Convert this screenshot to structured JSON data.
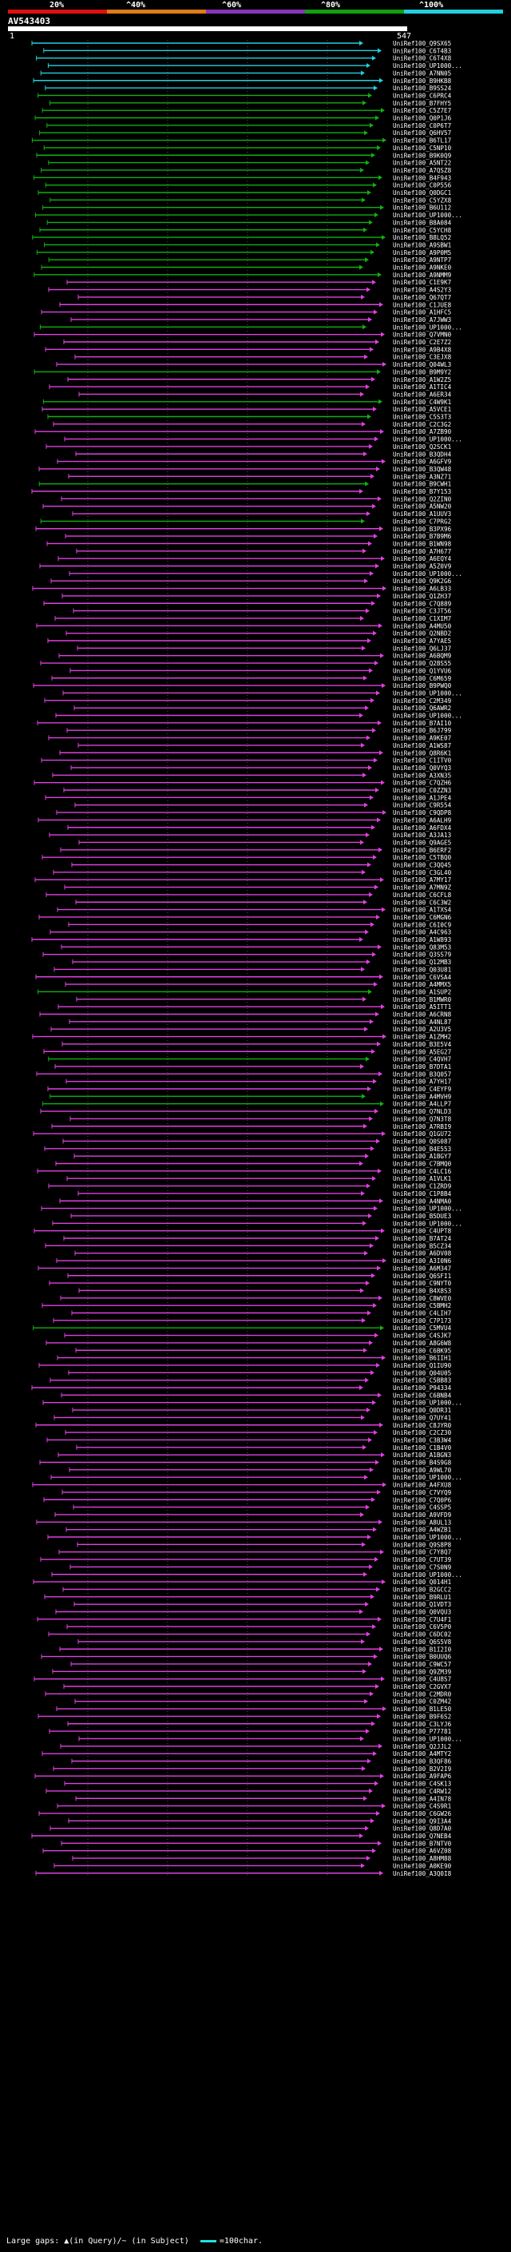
{
  "legend": {
    "labels": [
      "20%",
      "^40%",
      "^60%",
      "^80%",
      "^100%"
    ],
    "colors": [
      "#e01010",
      "#e07a1a",
      "#8a34b8",
      "#10a010",
      "#22d0e0"
    ]
  },
  "query": {
    "id": "AV543403",
    "start": "1",
    "end": "547"
  },
  "footer": {
    "large_gaps": "Large gaps: ▲(in Query)/~ (in Subject)",
    "scale": "=100char."
  },
  "hits": [
    {
      "label": "UniRef100_Q9SX65",
      "color": "cyan"
    },
    {
      "label": "UniRef100_C6T4B3",
      "color": "cyan"
    },
    {
      "label": "UniRef100_C6T4X8",
      "color": "cyan"
    },
    {
      "label": "UniRef100_UP1000...",
      "color": "cyan"
    },
    {
      "label": "UniRef100_A7NN05",
      "color": "cyan"
    },
    {
      "label": "UniRef100_B9HKB8",
      "color": "cyan"
    },
    {
      "label": "UniRef100_B9SS24",
      "color": "cyan"
    },
    {
      "label": "UniRef100_C6PRC4",
      "color": "green"
    },
    {
      "label": "UniRef100_B7FHY5",
      "color": "green"
    },
    {
      "label": "UniRef100_C5Z7E7",
      "color": "green"
    },
    {
      "label": "UniRef100_Q0P1J6",
      "color": "green"
    },
    {
      "label": "UniRef100_C0P6T7",
      "color": "green"
    },
    {
      "label": "UniRef100_Q6HV57",
      "color": "green"
    },
    {
      "label": "UniRef100_B6TL17",
      "color": "green"
    },
    {
      "label": "UniRef100_C5NP10",
      "color": "green"
    },
    {
      "label": "UniRef100_B9K0Q9",
      "color": "green"
    },
    {
      "label": "UniRef100_A5NT22",
      "color": "green"
    },
    {
      "label": "UniRef100_A7QSZ8",
      "color": "green"
    },
    {
      "label": "UniRef100_B4F943",
      "color": "green"
    },
    {
      "label": "UniRef100_C0P556",
      "color": "green"
    },
    {
      "label": "UniRef100_Q0DGC1",
      "color": "green"
    },
    {
      "label": "UniRef100_C5YZX8",
      "color": "green"
    },
    {
      "label": "UniRef100_B6U112",
      "color": "green"
    },
    {
      "label": "UniRef100_UP1000...",
      "color": "green"
    },
    {
      "label": "UniRef100_B8A084",
      "color": "green"
    },
    {
      "label": "UniRef100_C5YCH8",
      "color": "green"
    },
    {
      "label": "UniRef100_B8LQ52",
      "color": "green"
    },
    {
      "label": "UniRef100_A9SBW1",
      "color": "green"
    },
    {
      "label": "UniRef100_A9P0M5",
      "color": "green"
    },
    {
      "label": "UniRef100_A9NTP7",
      "color": "green"
    },
    {
      "label": "UniRef100_A9NKE0",
      "color": "green"
    },
    {
      "label": "UniRef100_A9NMM9",
      "color": "green"
    },
    {
      "label": "UniRef100_C1E9K7",
      "color": "magenta"
    },
    {
      "label": "UniRef100_A4S2Y3",
      "color": "magenta"
    },
    {
      "label": "UniRef100_Q67QT7",
      "color": "magenta"
    },
    {
      "label": "UniRef100_C1JUE8",
      "color": "magenta"
    },
    {
      "label": "UniRef100_A1HFC5",
      "color": "magenta"
    },
    {
      "label": "UniRef100_A7JWW3",
      "color": "magenta"
    },
    {
      "label": "UniRef100_UP1000...",
      "color": "green"
    },
    {
      "label": "UniRef100_Q7VMN0",
      "color": "magenta"
    },
    {
      "label": "UniRef100_C2E7Z2",
      "color": "magenta"
    },
    {
      "label": "UniRef100_A9B4X8",
      "color": "magenta"
    },
    {
      "label": "UniRef100_C3EJX8",
      "color": "magenta"
    },
    {
      "label": "UniRef100_Q04WL3",
      "color": "magenta"
    },
    {
      "label": "UniRef100_B9M9Y2",
      "color": "green"
    },
    {
      "label": "UniRef100_A1W2Z5",
      "color": "magenta"
    },
    {
      "label": "UniRef100_A1TIC4",
      "color": "magenta"
    },
    {
      "label": "UniRef100_A6ER34",
      "color": "magenta"
    },
    {
      "label": "UniRef100_C4W9K1",
      "color": "green"
    },
    {
      "label": "UniRef100_A5VCE1",
      "color": "magenta"
    },
    {
      "label": "UniRef100_C5S3T3",
      "color": "green"
    },
    {
      "label": "UniRef100_C2C3G2",
      "color": "magenta"
    },
    {
      "label": "UniRef100_A7ZB90",
      "color": "magenta"
    },
    {
      "label": "UniRef100_UP1000...",
      "color": "magenta"
    },
    {
      "label": "UniRef100_Q2SCK1",
      "color": "magenta"
    },
    {
      "label": "UniRef100_B3QDH4",
      "color": "magenta"
    },
    {
      "label": "UniRef100_A6GFV9",
      "color": "magenta"
    },
    {
      "label": "UniRef100_B3QW48",
      "color": "magenta"
    },
    {
      "label": "UniRef100_A3NZ71",
      "color": "magenta"
    },
    {
      "label": "UniRef100_B9CWH1",
      "color": "green"
    },
    {
      "label": "UniRef100_B7Y153",
      "color": "magenta"
    },
    {
      "label": "UniRef100_Q2ZIN0",
      "color": "magenta"
    },
    {
      "label": "UniRef100_A5NW20",
      "color": "magenta"
    },
    {
      "label": "UniRef100_A1UUV3",
      "color": "magenta"
    },
    {
      "label": "UniRef100_C7PRG2",
      "color": "green"
    },
    {
      "label": "UniRef100_B3PX96",
      "color": "magenta"
    },
    {
      "label": "UniRef100_B7B9M6",
      "color": "magenta"
    },
    {
      "label": "UniRef100_B1WN98",
      "color": "magenta"
    },
    {
      "label": "UniRef100_A7H677",
      "color": "magenta"
    },
    {
      "label": "UniRef100_A6EQY4",
      "color": "magenta"
    },
    {
      "label": "UniRef100_A5Z0V9",
      "color": "magenta"
    },
    {
      "label": "UniRef100_UP1000...",
      "color": "magenta"
    },
    {
      "label": "UniRef100_Q9K2G6",
      "color": "magenta"
    },
    {
      "label": "UniRef100_A6LB33",
      "color": "magenta"
    },
    {
      "label": "UniRef100_Q1ZH37",
      "color": "magenta"
    },
    {
      "label": "UniRef100_C7Q889",
      "color": "magenta"
    },
    {
      "label": "UniRef100_C3JT56",
      "color": "magenta"
    },
    {
      "label": "UniRef100_C1XIM7",
      "color": "magenta"
    },
    {
      "label": "UniRef100_A4MU50",
      "color": "magenta"
    },
    {
      "label": "UniRef100_Q2NBD2",
      "color": "magenta"
    },
    {
      "label": "UniRef100_A7YAE5",
      "color": "magenta"
    },
    {
      "label": "UniRef100_Q6LJ37",
      "color": "magenta"
    },
    {
      "label": "UniRef100_A6BQM9",
      "color": "magenta"
    },
    {
      "label": "UniRef100_Q2BS55",
      "color": "magenta"
    },
    {
      "label": "UniRef100_Q1YVU6",
      "color": "magenta"
    },
    {
      "label": "UniRef100_C6M659",
      "color": "magenta"
    },
    {
      "label": "UniRef100_B9PWQ0",
      "color": "magenta"
    },
    {
      "label": "UniRef100_UP1000...",
      "color": "magenta"
    },
    {
      "label": "UniRef100_C2M349",
      "color": "magenta"
    },
    {
      "label": "UniRef100_Q6AWR2",
      "color": "magenta"
    },
    {
      "label": "UniRef100_UP1000...",
      "color": "magenta"
    },
    {
      "label": "UniRef100_B7AI10",
      "color": "magenta"
    },
    {
      "label": "UniRef100_B6J799",
      "color": "magenta"
    },
    {
      "label": "UniRef100_A9KE07",
      "color": "magenta"
    },
    {
      "label": "UniRef100_A1WS87",
      "color": "magenta"
    },
    {
      "label": "UniRef100_Q8R6K1",
      "color": "magenta"
    },
    {
      "label": "UniRef100_C1ITV0",
      "color": "magenta"
    },
    {
      "label": "UniRef100_Q0VYQ3",
      "color": "magenta"
    },
    {
      "label": "UniRef100_A3XN35",
      "color": "magenta"
    },
    {
      "label": "UniRef100_C7QZH6",
      "color": "magenta"
    },
    {
      "label": "UniRef100_C0ZZN3",
      "color": "magenta"
    },
    {
      "label": "UniRef100_A1JPE4",
      "color": "magenta"
    },
    {
      "label": "UniRef100_C9R554",
      "color": "magenta"
    },
    {
      "label": "UniRef100_C9QDP8",
      "color": "magenta"
    },
    {
      "label": "UniRef100_A6ALH9",
      "color": "magenta"
    },
    {
      "label": "UniRef100_A6FDX4",
      "color": "magenta"
    },
    {
      "label": "UniRef100_A3JA13",
      "color": "magenta"
    },
    {
      "label": "UniRef100_Q9AGE5",
      "color": "magenta"
    },
    {
      "label": "UniRef100_B6ERF2",
      "color": "magenta"
    },
    {
      "label": "UniRef100_C5TBQ0",
      "color": "magenta"
    },
    {
      "label": "UniRef100_C3QQ45",
      "color": "magenta"
    },
    {
      "label": "UniRef100_C3GL40",
      "color": "magenta"
    },
    {
      "label": "UniRef100_A7MY17",
      "color": "magenta"
    },
    {
      "label": "UniRef100_A7MN9Z",
      "color": "magenta"
    },
    {
      "label": "UniRef100_C6CFL8",
      "color": "magenta"
    },
    {
      "label": "UniRef100_C6C3W2",
      "color": "magenta"
    },
    {
      "label": "UniRef100_A1TXS4",
      "color": "magenta"
    },
    {
      "label": "UniRef100_C6MGN6",
      "color": "magenta"
    },
    {
      "label": "UniRef100_C6I0C9",
      "color": "magenta"
    },
    {
      "label": "UniRef100_A4C963",
      "color": "magenta"
    },
    {
      "label": "UniRef100_A1W893",
      "color": "magenta"
    },
    {
      "label": "UniRef100_Q83M53",
      "color": "magenta"
    },
    {
      "label": "UniRef100_Q3SS79",
      "color": "magenta"
    },
    {
      "label": "UniRef100_Q12MB3",
      "color": "magenta"
    },
    {
      "label": "UniRef100_Q03U81",
      "color": "magenta"
    },
    {
      "label": "UniRef100_C6VSA4",
      "color": "magenta"
    },
    {
      "label": "UniRef100_A4MMX5",
      "color": "magenta"
    },
    {
      "label": "UniRef100_A1SUP2",
      "color": "green"
    },
    {
      "label": "UniRef100_B1MWR0",
      "color": "magenta"
    },
    {
      "label": "UniRef100_A5ITT1",
      "color": "magenta"
    },
    {
      "label": "UniRef100_A6CRN8",
      "color": "magenta"
    },
    {
      "label": "UniRef100_A4NL87",
      "color": "magenta"
    },
    {
      "label": "UniRef100_A2U3V5",
      "color": "magenta"
    },
    {
      "label": "UniRef100_A1ZMH2",
      "color": "magenta"
    },
    {
      "label": "UniRef100_B3E5V4",
      "color": "magenta"
    },
    {
      "label": "UniRef100_A5EG27",
      "color": "magenta"
    },
    {
      "label": "UniRef100_C4QVH7",
      "color": "green"
    },
    {
      "label": "UniRef100_B7DTA1",
      "color": "magenta"
    },
    {
      "label": "UniRef100_B3Q057",
      "color": "magenta"
    },
    {
      "label": "UniRef100_A7YH17",
      "color": "magenta"
    },
    {
      "label": "UniRef100_C4EYF9",
      "color": "magenta"
    },
    {
      "label": "UniRef100_A4MVH9",
      "color": "green"
    },
    {
      "label": "UniRef100_A4LLP7",
      "color": "green"
    },
    {
      "label": "UniRef100_Q7NLD3",
      "color": "magenta"
    },
    {
      "label": "UniRef100_Q7N3T8",
      "color": "magenta"
    },
    {
      "label": "UniRef100_A7RBI9",
      "color": "magenta"
    },
    {
      "label": "UniRef100_Q1GU72",
      "color": "magenta"
    },
    {
      "label": "UniRef100_Q0S087",
      "color": "magenta"
    },
    {
      "label": "UniRef100_B4E553",
      "color": "magenta"
    },
    {
      "label": "UniRef100_A1BGY7",
      "color": "magenta"
    },
    {
      "label": "UniRef100_C7BMQ0",
      "color": "magenta"
    },
    {
      "label": "UniRef100_C4LC16",
      "color": "magenta"
    },
    {
      "label": "UniRef100_A1VLK1",
      "color": "magenta"
    },
    {
      "label": "UniRef100_C1ZRD9",
      "color": "magenta"
    },
    {
      "label": "UniRef100_C1P8B4",
      "color": "magenta"
    },
    {
      "label": "UniRef100_A4NMA0",
      "color": "magenta"
    },
    {
      "label": "UniRef100_UP1000...",
      "color": "magenta"
    },
    {
      "label": "UniRef100_B5DUE3",
      "color": "magenta"
    },
    {
      "label": "UniRef100_UP1000...",
      "color": "magenta"
    },
    {
      "label": "UniRef100_C4UPT8",
      "color": "magenta"
    },
    {
      "label": "UniRef100_B7AT24",
      "color": "magenta"
    },
    {
      "label": "UniRef100_B5CZ34",
      "color": "magenta"
    },
    {
      "label": "UniRef100_A6DV08",
      "color": "magenta"
    },
    {
      "label": "UniRef100_A3I0N6",
      "color": "magenta"
    },
    {
      "label": "UniRef100_A6M347",
      "color": "magenta"
    },
    {
      "label": "UniRef100_Q6SFI1",
      "color": "magenta"
    },
    {
      "label": "UniRef100_C9NYT0",
      "color": "magenta"
    },
    {
      "label": "UniRef100_B4X8S3",
      "color": "magenta"
    },
    {
      "label": "UniRef100_C8WVE0",
      "color": "magenta"
    },
    {
      "label": "UniRef100_C5BMH2",
      "color": "magenta"
    },
    {
      "label": "UniRef100_C4LIH7",
      "color": "magenta"
    },
    {
      "label": "UniRef100_C7P173",
      "color": "magenta"
    },
    {
      "label": "UniRef100_C5MVU4",
      "color": "green"
    },
    {
      "label": "UniRef100_C4SJK7",
      "color": "magenta"
    },
    {
      "label": "UniRef100_A8G6W8",
      "color": "magenta"
    },
    {
      "label": "UniRef100_C6BK95",
      "color": "magenta"
    },
    {
      "label": "UniRef100_B6IIH1",
      "color": "magenta"
    },
    {
      "label": "UniRef100_Q1IU90",
      "color": "magenta"
    },
    {
      "label": "UniRef100_Q04U05",
      "color": "magenta"
    },
    {
      "label": "UniRef100_C5BB83",
      "color": "magenta"
    },
    {
      "label": "UniRef100_P94334",
      "color": "magenta"
    },
    {
      "label": "UniRef100_C6BNB4",
      "color": "magenta"
    },
    {
      "label": "UniRef100_UP1000...",
      "color": "magenta"
    },
    {
      "label": "UniRef100_Q0DR31",
      "color": "magenta"
    },
    {
      "label": "UniRef100_Q7UY41",
      "color": "magenta"
    },
    {
      "label": "UniRef100_C8JYR0",
      "color": "magenta"
    },
    {
      "label": "UniRef100_C2CZ30",
      "color": "magenta"
    },
    {
      "label": "UniRef100_C3B3W4",
      "color": "magenta"
    },
    {
      "label": "UniRef100_C1B4V0",
      "color": "magenta"
    },
    {
      "label": "UniRef100_A1BGN3",
      "color": "magenta"
    },
    {
      "label": "UniRef100_B4S9G8",
      "color": "magenta"
    },
    {
      "label": "UniRef100_A9WL70",
      "color": "magenta"
    },
    {
      "label": "UniRef100_UP1000...",
      "color": "magenta"
    },
    {
      "label": "UniRef100_A4FXU8",
      "color": "magenta"
    },
    {
      "label": "UniRef100_C7VYQ9",
      "color": "magenta"
    },
    {
      "label": "UniRef100_C7Q0P6",
      "color": "magenta"
    },
    {
      "label": "UniRef100_C4SSP5",
      "color": "magenta"
    },
    {
      "label": "UniRef100_A9VFD9",
      "color": "magenta"
    },
    {
      "label": "UniRef100_A8UL13",
      "color": "magenta"
    },
    {
      "label": "UniRef100_A4WZB1",
      "color": "magenta"
    },
    {
      "label": "UniRef100_UP1000...",
      "color": "magenta"
    },
    {
      "label": "UniRef100_Q9S8P8",
      "color": "magenta"
    },
    {
      "label": "UniRef100_C7Y8Q7",
      "color": "magenta"
    },
    {
      "label": "UniRef100_C7UT39",
      "color": "magenta"
    },
    {
      "label": "UniRef100_C7S0N9",
      "color": "magenta"
    },
    {
      "label": "UniRef100_UP1000...",
      "color": "magenta"
    },
    {
      "label": "UniRef100_Q014H1",
      "color": "magenta"
    },
    {
      "label": "UniRef100_B2GCC2",
      "color": "magenta"
    },
    {
      "label": "UniRef100_B9RLU1",
      "color": "magenta"
    },
    {
      "label": "UniRef100_Q1VDT3",
      "color": "magenta"
    },
    {
      "label": "UniRef100_Q0VQU3",
      "color": "magenta"
    },
    {
      "label": "UniRef100_C7U4F1",
      "color": "magenta"
    },
    {
      "label": "UniRef100_C6V5P0",
      "color": "magenta"
    },
    {
      "label": "UniRef100_C6DC02",
      "color": "magenta"
    },
    {
      "label": "UniRef100_Q6S5V8",
      "color": "magenta"
    },
    {
      "label": "UniRef100_B1I2I0",
      "color": "magenta"
    },
    {
      "label": "UniRef100_B0UUQ6",
      "color": "magenta"
    },
    {
      "label": "UniRef100_C9WC57",
      "color": "magenta"
    },
    {
      "label": "UniRef100_Q9ZM39",
      "color": "magenta"
    },
    {
      "label": "UniRef100_C4U8S7",
      "color": "magenta"
    },
    {
      "label": "UniRef100_C2GVX7",
      "color": "magenta"
    },
    {
      "label": "UniRef100_C2MDR0",
      "color": "magenta"
    },
    {
      "label": "UniRef100_C0ZM42",
      "color": "magenta"
    },
    {
      "label": "UniRef100_B1LE50",
      "color": "magenta"
    },
    {
      "label": "UniRef100_B9F6S2",
      "color": "magenta"
    },
    {
      "label": "UniRef100_C3LYJ6",
      "color": "magenta"
    },
    {
      "label": "UniRef100_P77781",
      "color": "magenta"
    },
    {
      "label": "UniRef100_UP1000...",
      "color": "magenta"
    },
    {
      "label": "UniRef100_Q2JJL2",
      "color": "magenta"
    },
    {
      "label": "UniRef100_A4MTY2",
      "color": "magenta"
    },
    {
      "label": "UniRef100_B3QF86",
      "color": "magenta"
    },
    {
      "label": "UniRef100_B2V2I9",
      "color": "magenta"
    },
    {
      "label": "UniRef100_A9FAP6",
      "color": "magenta"
    },
    {
      "label": "UniRef100_C4SK13",
      "color": "magenta"
    },
    {
      "label": "UniRef100_C4RW12",
      "color": "magenta"
    },
    {
      "label": "UniRef100_A4IN78",
      "color": "magenta"
    },
    {
      "label": "UniRef100_C4S9R1",
      "color": "magenta"
    },
    {
      "label": "UniRef100_C6GW26",
      "color": "magenta"
    },
    {
      "label": "UniRef100_Q9I3A4",
      "color": "magenta"
    },
    {
      "label": "UniRef100_Q8D7A0",
      "color": "magenta"
    },
    {
      "label": "UniRef100_Q7NEB4",
      "color": "magenta"
    },
    {
      "label": "UniRef100_B7NTV0",
      "color": "magenta"
    },
    {
      "label": "UniRef100_A6VZ08",
      "color": "magenta"
    },
    {
      "label": "UniRef100_A8HM88",
      "color": "magenta"
    },
    {
      "label": "UniRef100_A0KE90",
      "color": "magenta"
    },
    {
      "label": "UniRef100_A3Q0I8",
      "color": "magenta"
    }
  ]
}
